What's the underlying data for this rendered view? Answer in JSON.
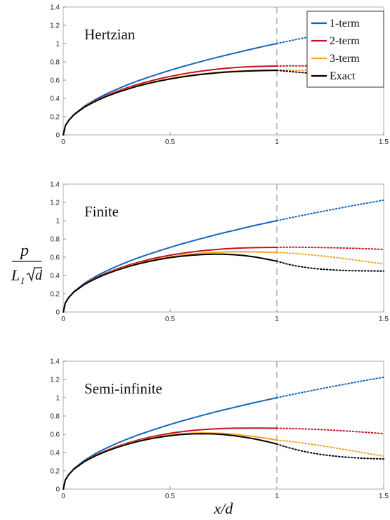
{
  "chart_data": {
    "type": "line",
    "xlabel": "x/d",
    "ylabel": {
      "numerator": "p",
      "denominator_L": "L",
      "denominator_sub": "I",
      "denominator_root": "d"
    },
    "xlim": [
      0,
      1.5
    ],
    "ylim": [
      0,
      1.4
    ],
    "xticks": [
      "0",
      "0.5",
      "1",
      "1.5"
    ],
    "yticks": [
      "0",
      "0.2",
      "0.4",
      "0.6",
      "0.8",
      "1",
      "1.2",
      "1.4"
    ],
    "reference_line_x": 1,
    "grid": false,
    "legend": {
      "placement": "top-right of first panel",
      "entries": [
        "1-term",
        "2-term",
        "3-term",
        "Exact"
      ]
    },
    "series_colors": {
      "1-term": "#1565c0",
      "2-term": "#c2132b",
      "3-term": "#f5a623",
      "Exact": "#000000"
    },
    "x": [
      0,
      0.01,
      0.025,
      0.05,
      0.1,
      0.15,
      0.2,
      0.25,
      0.3,
      0.35,
      0.4,
      0.45,
      0.5,
      0.55,
      0.6,
      0.65,
      0.7,
      0.75,
      0.8,
      0.85,
      0.9,
      0.95,
      1.0,
      1.05,
      1.1,
      1.15,
      1.2,
      1.25,
      1.3,
      1.35,
      1.4,
      1.45,
      1.5
    ],
    "panels": [
      {
        "label": "Hertzian",
        "series": [
          {
            "name": "1-term",
            "values": [
              0,
              0.1,
              0.158,
              0.224,
              0.316,
              0.387,
              0.447,
              0.5,
              0.548,
              0.592,
              0.632,
              0.671,
              0.707,
              0.742,
              0.775,
              0.806,
              0.837,
              0.866,
              0.894,
              0.922,
              0.949,
              0.975,
              1.0,
              1.025,
              1.049,
              1.072,
              1.095,
              1.118,
              1.14,
              1.162,
              1.183,
              1.204,
              1.225
            ]
          },
          {
            "name": "2-term",
            "values": [
              0,
              0.1,
              0.158,
              0.222,
              0.31,
              0.375,
              0.43,
              0.477,
              0.518,
              0.554,
              0.586,
              0.615,
              0.64,
              0.663,
              0.683,
              0.7,
              0.715,
              0.727,
              0.737,
              0.744,
              0.749,
              0.752,
              0.754,
              0.755,
              0.756,
              0.756,
              0.757,
              0.757,
              0.757,
              0.757,
              0.757,
              0.757,
              0.757
            ]
          },
          {
            "name": "3-term",
            "values": [
              0,
              0.1,
              0.158,
              0.221,
              0.307,
              0.37,
              0.422,
              0.467,
              0.505,
              0.539,
              0.569,
              0.595,
              0.617,
              0.637,
              0.654,
              0.668,
              0.68,
              0.69,
              0.697,
              0.703,
              0.707,
              0.709,
              0.71,
              0.709,
              0.708,
              0.706,
              0.704,
              0.701,
              0.698,
              0.695,
              0.692,
              0.689,
              0.686
            ]
          },
          {
            "name": "Exact",
            "values": [
              0,
              0.1,
              0.158,
              0.221,
              0.306,
              0.368,
              0.419,
              0.463,
              0.501,
              0.535,
              0.564,
              0.59,
              0.612,
              0.632,
              0.649,
              0.663,
              0.675,
              0.685,
              0.692,
              0.698,
              0.702,
              0.705,
              0.707,
              0.697,
              0.686,
              0.676,
              0.666,
              0.656,
              0.646,
              0.637,
              0.628,
              0.619,
              0.61
            ]
          }
        ]
      },
      {
        "label": "Finite",
        "series": [
          {
            "name": "1-term",
            "values": [
              0,
              0.1,
              0.158,
              0.224,
              0.316,
              0.387,
              0.447,
              0.5,
              0.548,
              0.592,
              0.632,
              0.671,
              0.707,
              0.742,
              0.775,
              0.806,
              0.837,
              0.866,
              0.894,
              0.922,
              0.949,
              0.975,
              1.0,
              1.025,
              1.049,
              1.072,
              1.095,
              1.118,
              1.14,
              1.162,
              1.183,
              1.204,
              1.225
            ]
          },
          {
            "name": "2-term",
            "values": [
              0,
              0.1,
              0.157,
              0.221,
              0.307,
              0.372,
              0.425,
              0.47,
              0.51,
              0.544,
              0.574,
              0.6,
              0.622,
              0.641,
              0.657,
              0.67,
              0.681,
              0.69,
              0.697,
              0.702,
              0.705,
              0.707,
              0.708,
              0.709,
              0.709,
              0.708,
              0.706,
              0.704,
              0.701,
              0.698,
              0.694,
              0.69,
              0.685
            ]
          },
          {
            "name": "3-term",
            "values": [
              0,
              0.1,
              0.157,
              0.22,
              0.305,
              0.367,
              0.418,
              0.462,
              0.499,
              0.532,
              0.56,
              0.584,
              0.604,
              0.621,
              0.634,
              0.644,
              0.651,
              0.656,
              0.659,
              0.659,
              0.658,
              0.655,
              0.652,
              0.646,
              0.638,
              0.628,
              0.616,
              0.603,
              0.589,
              0.574,
              0.558,
              0.542,
              0.526
            ]
          },
          {
            "name": "Exact",
            "values": [
              0,
              0.1,
              0.157,
              0.219,
              0.303,
              0.364,
              0.415,
              0.457,
              0.494,
              0.526,
              0.553,
              0.576,
              0.595,
              0.61,
              0.621,
              0.629,
              0.632,
              0.632,
              0.627,
              0.617,
              0.601,
              0.58,
              0.556,
              0.524,
              0.5,
              0.483,
              0.47,
              0.462,
              0.456,
              0.452,
              0.45,
              0.449,
              0.448
            ]
          }
        ]
      },
      {
        "label": "Semi-infinite",
        "series": [
          {
            "name": "1-term",
            "values": [
              0,
              0.1,
              0.158,
              0.224,
              0.316,
              0.387,
              0.447,
              0.5,
              0.548,
              0.592,
              0.632,
              0.671,
              0.707,
              0.742,
              0.775,
              0.806,
              0.837,
              0.866,
              0.894,
              0.922,
              0.949,
              0.975,
              1.0,
              1.025,
              1.049,
              1.072,
              1.095,
              1.118,
              1.14,
              1.162,
              1.183,
              1.204,
              1.225
            ]
          },
          {
            "name": "2-term",
            "values": [
              0,
              0.1,
              0.157,
              0.22,
              0.305,
              0.369,
              0.421,
              0.466,
              0.504,
              0.537,
              0.566,
              0.59,
              0.611,
              0.627,
              0.641,
              0.651,
              0.658,
              0.663,
              0.666,
              0.667,
              0.667,
              0.667,
              0.666,
              0.664,
              0.661,
              0.657,
              0.652,
              0.646,
              0.639,
              0.632,
              0.624,
              0.616,
              0.607
            ]
          },
          {
            "name": "3-term",
            "values": [
              0,
              0.1,
              0.157,
              0.219,
              0.303,
              0.365,
              0.416,
              0.459,
              0.496,
              0.527,
              0.554,
              0.575,
              0.592,
              0.604,
              0.612,
              0.615,
              0.614,
              0.609,
              0.6,
              0.588,
              0.573,
              0.556,
              0.537,
              0.525,
              0.511,
              0.495,
              0.478,
              0.459,
              0.44,
              0.42,
              0.4,
              0.38,
              0.36
            ]
          },
          {
            "name": "Exact",
            "values": [
              0,
              0.1,
              0.157,
              0.219,
              0.302,
              0.363,
              0.413,
              0.455,
              0.491,
              0.522,
              0.547,
              0.568,
              0.585,
              0.597,
              0.604,
              0.606,
              0.604,
              0.597,
              0.585,
              0.568,
              0.547,
              0.522,
              0.493,
              0.456,
              0.426,
              0.401,
              0.381,
              0.366,
              0.354,
              0.345,
              0.338,
              0.333,
              0.33
            ]
          }
        ]
      }
    ]
  }
}
